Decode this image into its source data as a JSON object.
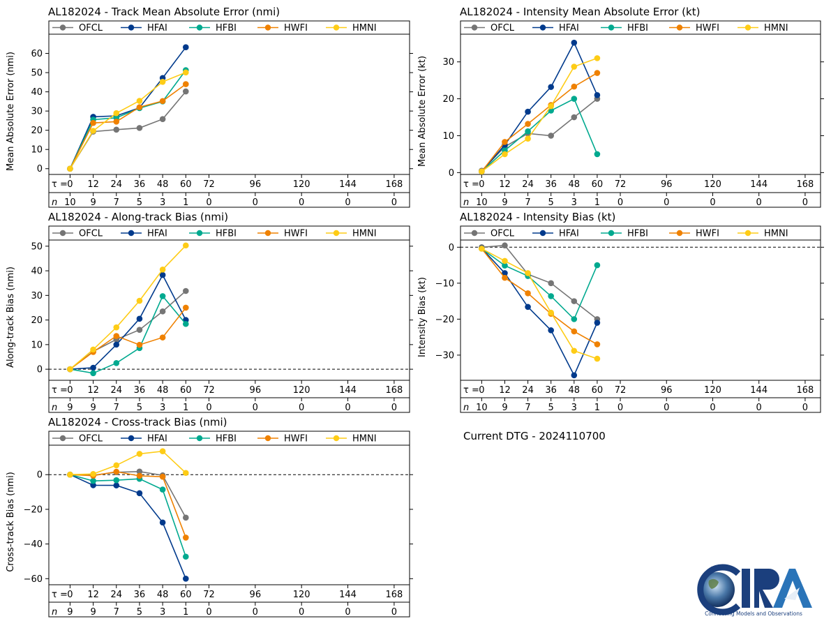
{
  "dtg": "Current DTG - 2024110700",
  "logo": {
    "text": "CIRA",
    "tagline": "Connecting Models and Observations",
    "colors": {
      "primary": "#1b3f7d",
      "accent": "#2a74b8"
    }
  },
  "series_colors": {
    "OFCL": "#757575",
    "HFAI": "#003a8c",
    "HFBI": "#00a98f",
    "HWFI": "#ef8100",
    "HMNI": "#fecc16"
  },
  "tau_label": "τ = ",
  "n_label": "n",
  "chart_data": [
    {
      "id": "track-mae",
      "type": "line",
      "title": "AL182024 - Track Mean Absolute Error (nmi)",
      "ylabel": "Mean Absolute Error (nmi)",
      "ylim": [
        -3,
        70
      ],
      "yticks": [
        0,
        10,
        20,
        30,
        40,
        50,
        60
      ],
      "x": [
        0,
        12,
        24,
        36,
        48,
        60
      ],
      "taus": [
        0,
        12,
        24,
        36,
        48,
        60,
        72,
        96,
        120,
        144,
        168
      ],
      "n": [
        10,
        9,
        7,
        5,
        3,
        1,
        0,
        0,
        0,
        0,
        0
      ],
      "zero_line": false,
      "series": [
        {
          "name": "OFCL",
          "values": [
            0,
            19.3,
            20.3,
            21.2,
            25.8,
            40.2
          ]
        },
        {
          "name": "HFAI",
          "values": [
            0,
            27,
            27.5,
            31.7,
            47.2,
            63.2
          ]
        },
        {
          "name": "HFBI",
          "values": [
            0,
            25.5,
            26.5,
            31.5,
            35.0,
            51.3
          ]
        },
        {
          "name": "HWFI",
          "values": [
            0,
            23.8,
            24.5,
            32.0,
            35.2,
            44.0
          ]
        },
        {
          "name": "HMNI",
          "values": [
            0,
            19.7,
            28.9,
            35.3,
            45.2,
            50.1
          ]
        }
      ]
    },
    {
      "id": "intensity-mae",
      "type": "line",
      "title": "AL182024 - Intensity Mean Absolute Error (kt)",
      "ylabel": "Mean Absolute Error (kt)",
      "ylim": [
        -0.5,
        37.5
      ],
      "yticks": [
        0,
        10,
        20,
        30
      ],
      "x": [
        0,
        12,
        24,
        36,
        48,
        60
      ],
      "taus": [
        0,
        12,
        24,
        36,
        48,
        60,
        72,
        96,
        120,
        144,
        168
      ],
      "n": [
        10,
        9,
        7,
        5,
        3,
        1,
        0,
        0,
        0,
        0,
        0
      ],
      "zero_line": false,
      "series": [
        {
          "name": "OFCL",
          "values": [
            0.5,
            7.0,
            10.6,
            10.0,
            15.0,
            20.0
          ]
        },
        {
          "name": "HFAI",
          "values": [
            0.3,
            7.5,
            16.5,
            23.2,
            35.2,
            21.0
          ]
        },
        {
          "name": "HFBI",
          "values": [
            0.3,
            6.0,
            11.2,
            16.8,
            20.0,
            5.0
          ]
        },
        {
          "name": "HWFI",
          "values": [
            0.3,
            8.3,
            13.2,
            18.3,
            23.3,
            27.0
          ]
        },
        {
          "name": "HMNI",
          "values": [
            0.3,
            5.0,
            9.2,
            18.0,
            28.7,
            31.0
          ]
        }
      ]
    },
    {
      "id": "along-track-bias",
      "type": "line",
      "title": "AL182024 - Along-track Bias (nmi)",
      "ylabel": "Along-track Bias (nmi)",
      "ylim": [
        -4.5,
        52.5
      ],
      "yticks": [
        0,
        10,
        20,
        30,
        40,
        50
      ],
      "x": [
        0,
        12,
        24,
        36,
        48,
        60
      ],
      "taus": [
        0,
        12,
        24,
        36,
        48,
        60,
        72,
        96,
        120,
        144,
        168
      ],
      "n": [
        9,
        9,
        7,
        5,
        3,
        1,
        0,
        0,
        0,
        0,
        0
      ],
      "zero_line": true,
      "series": [
        {
          "name": "OFCL",
          "values": [
            0,
            7.2,
            12.1,
            16.0,
            23.5,
            31.8
          ]
        },
        {
          "name": "HFAI",
          "values": [
            0,
            0.6,
            10.0,
            20.5,
            38.3,
            20.0
          ]
        },
        {
          "name": "HFBI",
          "values": [
            0,
            -1.6,
            2.5,
            8.6,
            29.7,
            18.4
          ]
        },
        {
          "name": "HWFI",
          "values": [
            0,
            7.0,
            13.5,
            9.9,
            12.9,
            25.0
          ]
        },
        {
          "name": "HMNI",
          "values": [
            0,
            8.0,
            17.0,
            27.8,
            40.5,
            50.3
          ]
        }
      ]
    },
    {
      "id": "intensity-bias",
      "type": "line",
      "title": "AL182024 - Intensity Bias (kt)",
      "ylabel": "Intensity Bias (kt)",
      "ylim": [
        -37,
        2
      ],
      "yticks": [
        0,
        -10,
        -20,
        -30
      ],
      "x": [
        0,
        12,
        24,
        36,
        48,
        60
      ],
      "taus": [
        0,
        12,
        24,
        36,
        48,
        60,
        72,
        96,
        120,
        144,
        168
      ],
      "n": [
        10,
        9,
        7,
        5,
        3,
        1,
        0,
        0,
        0,
        0,
        0
      ],
      "zero_line": true,
      "series": [
        {
          "name": "OFCL",
          "values": [
            0,
            0.5,
            -7.5,
            -10.0,
            -15.0,
            -20.0
          ]
        },
        {
          "name": "HFAI",
          "values": [
            -0.3,
            -7.2,
            -16.6,
            -23.1,
            -35.6,
            -21.0
          ]
        },
        {
          "name": "HFBI",
          "values": [
            -0.4,
            -5.1,
            -8.0,
            -13.6,
            -20.0,
            -5.0
          ]
        },
        {
          "name": "HWFI",
          "values": [
            -0.4,
            -8.5,
            -12.8,
            -18.5,
            -23.4,
            -27.0
          ]
        },
        {
          "name": "HMNI",
          "values": [
            -0.4,
            -3.8,
            -7.2,
            -18.2,
            -28.8,
            -31.0
          ]
        }
      ]
    },
    {
      "id": "cross-track-bias",
      "type": "line",
      "title": "AL182024 - Cross-track Bias (nmi)",
      "ylabel": "Cross-track Bias (nmi)",
      "ylim": [
        -63.5,
        17.0
      ],
      "yticks": [
        0,
        -20,
        -40,
        -60
      ],
      "x": [
        0,
        12,
        24,
        36,
        48,
        60
      ],
      "taus": [
        0,
        12,
        24,
        36,
        48,
        60,
        72,
        96,
        120,
        144,
        168
      ],
      "n": [
        9,
        9,
        7,
        5,
        3,
        1,
        0,
        0,
        0,
        0,
        0
      ],
      "zero_line": true,
      "series": [
        {
          "name": "OFCL",
          "values": [
            0,
            -0.3,
            1.4,
            1.8,
            -0.4,
            -24.8
          ]
        },
        {
          "name": "HFAI",
          "values": [
            0,
            -6.1,
            -6.2,
            -10.7,
            -27.6,
            -60.0
          ]
        },
        {
          "name": "HFBI",
          "values": [
            0,
            -3.6,
            -3.2,
            -2.4,
            -8.6,
            -47.3
          ]
        },
        {
          "name": "HWFI",
          "values": [
            0,
            -0.6,
            1.7,
            -0.7,
            -1.2,
            -36.3
          ]
        },
        {
          "name": "HMNI",
          "values": [
            0,
            0.4,
            5.4,
            12.0,
            13.5,
            1.0
          ]
        }
      ]
    }
  ]
}
